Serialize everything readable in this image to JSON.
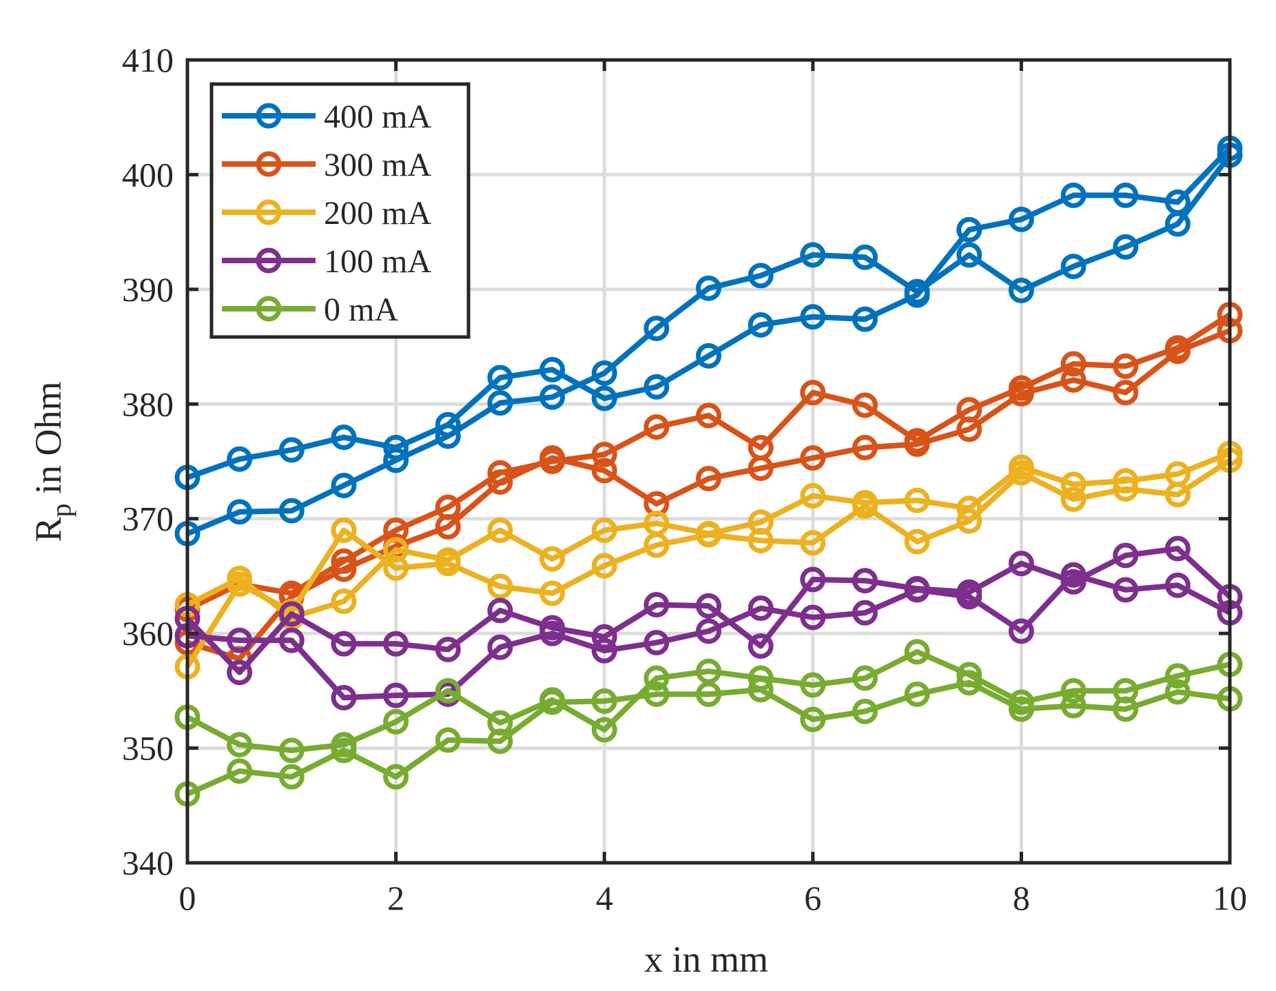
{
  "chart_data": {
    "type": "line",
    "xlabel": "x in mm",
    "ylabel": "R",
    "ylabel_subscript": "p",
    "ylabel_suffix": " in Ohm",
    "xlim": [
      0,
      10
    ],
    "ylim": [
      340,
      410
    ],
    "xticks": [
      0,
      2,
      4,
      6,
      8,
      10
    ],
    "yticks": [
      340,
      350,
      360,
      370,
      380,
      390,
      400,
      410
    ],
    "grid": true,
    "legend_position": "top-left",
    "x": [
      0,
      0.5,
      1,
      1.5,
      2,
      2.5,
      3,
      3.5,
      4,
      4.5,
      5,
      5.5,
      6,
      6.5,
      7,
      7.5,
      8,
      8.5,
      9,
      9.5,
      10
    ],
    "series": [
      {
        "name": "400 mA",
        "color": "#0072BD",
        "runs": [
          [
            373.6,
            375.2,
            376.0,
            377.1,
            376.2,
            378.2,
            382.3,
            383.0,
            380.5,
            381.5,
            384.2,
            386.9,
            387.6,
            387.4,
            389.5,
            395.2,
            396.1,
            398.2,
            398.2,
            397.6,
            402.3
          ],
          [
            368.7,
            370.6,
            370.7,
            372.9,
            375.1,
            377.2,
            380.1,
            380.6,
            382.7,
            386.6,
            390.1,
            391.2,
            393.0,
            392.8,
            389.8,
            393.0,
            389.9,
            392.0,
            393.7,
            395.7,
            401.7
          ]
        ]
      },
      {
        "name": "300 mA",
        "color": "#D95319",
        "runs": [
          [
            362.1,
            364.3,
            363.5,
            366.3,
            369.0,
            371.0,
            374.0,
            375.0,
            375.6,
            378.0,
            379.0,
            376.2,
            381.0,
            379.9,
            376.8,
            379.5,
            381.4,
            383.5,
            383.3,
            384.9,
            387.8
          ],
          [
            359.2,
            357.8,
            363.2,
            365.6,
            367.6,
            369.3,
            373.2,
            375.3,
            374.2,
            371.3,
            373.5,
            374.4,
            375.3,
            376.2,
            376.5,
            377.8,
            380.9,
            382.1,
            381.0,
            384.6,
            386.4
          ]
        ]
      },
      {
        "name": "200 mA",
        "color": "#EDB120",
        "runs": [
          [
            362.5,
            364.8,
            361.4,
            362.8,
            367.3,
            366.4,
            369.0,
            366.5,
            369.0,
            369.6,
            368.7,
            369.7,
            372.0,
            371.4,
            371.6,
            370.9,
            374.5,
            373.0,
            373.3,
            373.9,
            375.7
          ],
          [
            357.1,
            364.3,
            361.9,
            369.0,
            365.7,
            366.1,
            364.1,
            363.5,
            365.9,
            367.7,
            368.6,
            368.1,
            367.9,
            371.1,
            368.0,
            369.8,
            374.0,
            371.7,
            372.6,
            372.1,
            375.1
          ]
        ]
      },
      {
        "name": "100 mA",
        "color": "#7E2F8E",
        "runs": [
          [
            361.3,
            356.6,
            361.7,
            359.1,
            359.1,
            358.6,
            362.0,
            360.5,
            359.7,
            362.5,
            362.4,
            358.9,
            364.7,
            364.6,
            363.9,
            363.6,
            366.1,
            364.5,
            366.8,
            367.4,
            363.2
          ],
          [
            359.8,
            359.4,
            359.4,
            354.4,
            354.6,
            354.7,
            358.8,
            360.0,
            358.5,
            359.2,
            360.2,
            362.2,
            361.4,
            361.8,
            363.8,
            363.2,
            360.2,
            365.1,
            363.8,
            364.2,
            361.8
          ]
        ]
      },
      {
        "name": "0 mA",
        "color": "#77AC30",
        "runs": [
          [
            352.7,
            350.3,
            349.8,
            350.3,
            352.3,
            355.0,
            352.2,
            354.2,
            351.6,
            356.1,
            356.7,
            356.1,
            355.5,
            356.1,
            358.4,
            356.4,
            354.0,
            355.0,
            355.0,
            356.3,
            357.3
          ],
          [
            346.0,
            348.0,
            347.5,
            349.8,
            347.5,
            350.7,
            350.6,
            354.0,
            354.1,
            354.7,
            354.7,
            355.1,
            352.5,
            353.2,
            354.7,
            355.7,
            353.4,
            353.7,
            353.4,
            354.9,
            354.3
          ]
        ]
      }
    ]
  }
}
